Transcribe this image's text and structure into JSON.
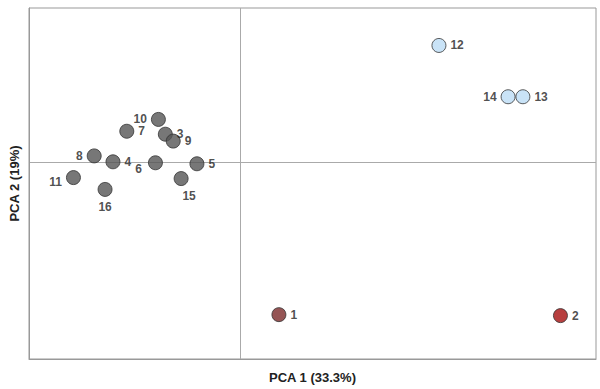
{
  "chart_data": {
    "type": "scatter",
    "x_label": "PCA 1 (33.3%)",
    "y_label": "PCA 2 (19%)",
    "point_labels": [
      "1",
      "2",
      "3",
      "4",
      "5",
      "6",
      "7",
      "8",
      "9",
      "10",
      "11",
      "12",
      "13",
      "14",
      "15",
      "16"
    ],
    "x": [
      0.39,
      3.24,
      -0.76,
      -1.29,
      -0.44,
      -0.86,
      -1.15,
      -1.48,
      -0.68,
      -0.83,
      -1.69,
      2.01,
      2.86,
      2.71,
      -0.6,
      -1.37
    ],
    "values": [
      -1.55,
      -1.56,
      0.28,
      0.0,
      -0.02,
      -0.01,
      0.31,
      0.06,
      0.21,
      0.43,
      -0.16,
      1.18,
      0.66,
      0.66,
      -0.17,
      -0.28
    ],
    "colors": [
      "#7a2b2b",
      "#a50f0f",
      "#555555",
      "#555555",
      "#555555",
      "#555555",
      "#555555",
      "#555555",
      "#555555",
      "#555555",
      "#555555",
      "#bcdcf5",
      "#bcdcf5",
      "#bcdcf5",
      "#555555",
      "#555555"
    ],
    "marker": "circle",
    "xlim": [
      -2.14,
      3.6
    ],
    "ylim": [
      -2.0,
      1.56
    ],
    "xticks": [
      0
    ],
    "yticks": [
      0
    ],
    "grid": true,
    "tick_labels": false
  }
}
